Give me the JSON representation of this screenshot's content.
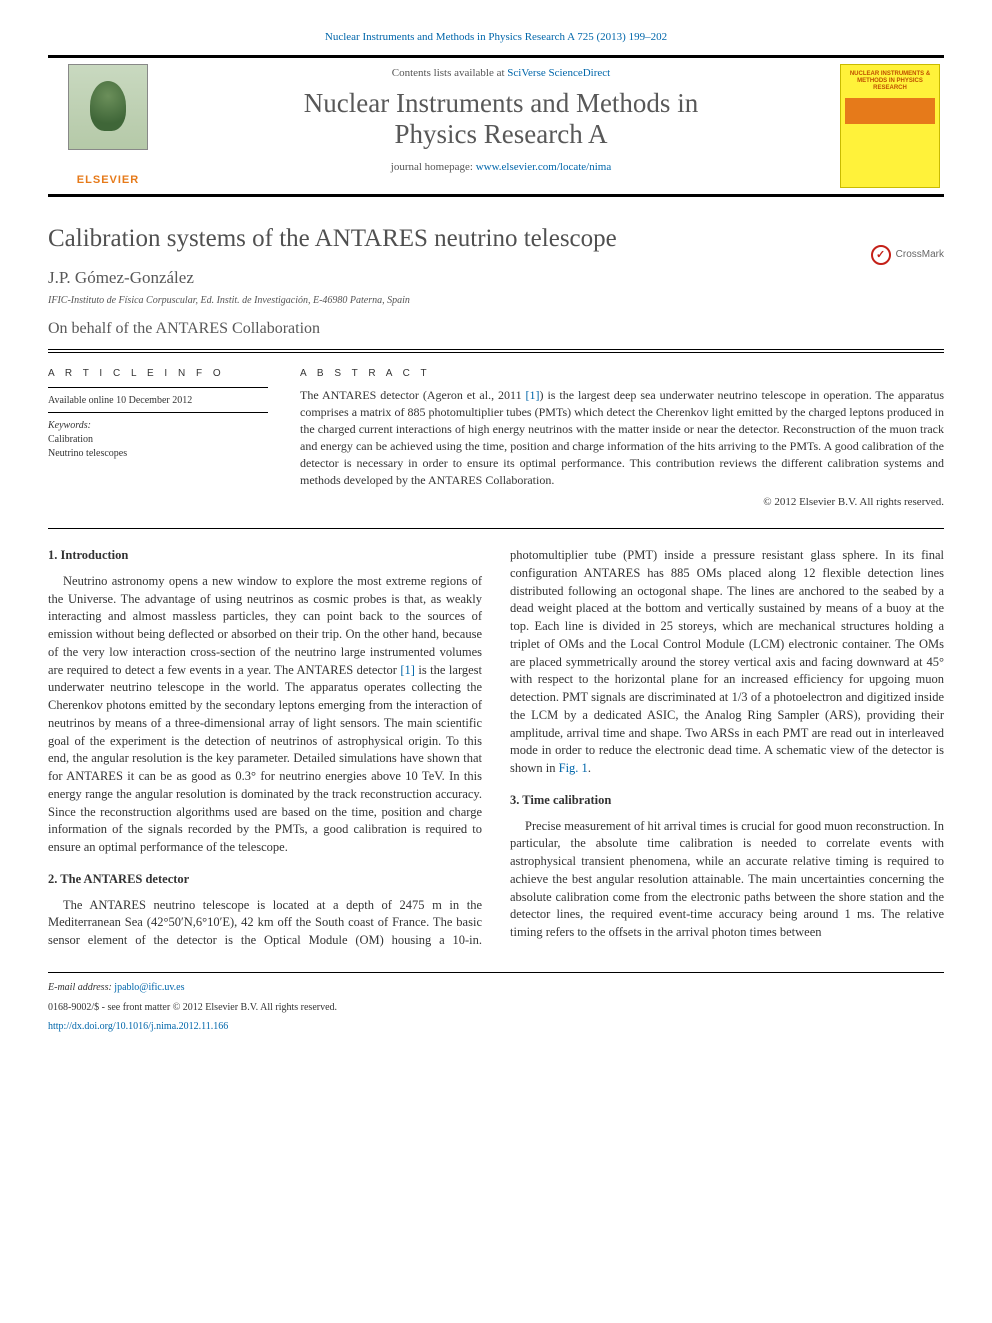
{
  "top_link": {
    "journal": "Nuclear Instruments and Methods in Physics Research A",
    "citation": "725 (2013) 199–202",
    "href_color": "#0066aa"
  },
  "masthead": {
    "contents_prefix": "Contents lists available at ",
    "contents_link": "SciVerse ScienceDirect",
    "journal_title_line1": "Nuclear Instruments and Methods in",
    "journal_title_line2": "Physics Research A",
    "homepage_prefix": "journal homepage: ",
    "homepage_url": "www.elsevier.com/locate/nima",
    "elsevier": "ELSEVIER",
    "cover_text": "NUCLEAR INSTRUMENTS & METHODS IN PHYSICS RESEARCH",
    "cover_bg": "#fff23a",
    "cover_bar": "#e67a1a"
  },
  "crossmark": "CrossMark",
  "article": {
    "title": "Calibration systems of the ANTARES neutrino telescope",
    "author": "J.P. Gómez-González",
    "affiliation": "IFIC-Instituto de Física Corpuscular, Ed. Instit. de Investigación, E-46980 Paterna, Spain",
    "behalf": "On behalf of the ANTARES Collaboration"
  },
  "meta": {
    "info_heading": "A R T I C L E   I N F O",
    "abstract_heading": "A B S T R A C T",
    "available": "Available online 10 December 2012",
    "keywords_label": "Keywords:",
    "keywords": [
      "Calibration",
      "Neutrino telescopes"
    ]
  },
  "abstract": {
    "text_pre": "The ANTARES detector (Ageron et al., 2011 ",
    "ref1": "[1]",
    "text_post": ") is the largest deep sea underwater neutrino telescope in operation. The apparatus comprises a matrix of 885 photomultiplier tubes (PMTs) which detect the Cherenkov light emitted by the charged leptons produced in the charged current interactions of high energy neutrinos with the matter inside or near the detector. Reconstruction of the muon track and energy can be achieved using the time, position and charge information of the hits arriving to the PMTs. A good calibration of the detector is necessary in order to ensure its optimal performance. This contribution reviews the different calibration systems and methods developed by the ANTARES Collaboration.",
    "copyright": "© 2012 Elsevier B.V. All rights reserved."
  },
  "sections": {
    "s1_heading": "1.  Introduction",
    "s1_p1a": "Neutrino astronomy opens a new window to explore the most extreme regions of the Universe. The advantage of using neutrinos as cosmic probes is that, as weakly interacting and almost massless particles, they can point back to the sources of emission without being deflected or absorbed on their trip. On the other hand, because of the very low interaction cross-section of the neutrino large instrumented volumes are required to detect a few events in a year. The ANTARES detector ",
    "s1_ref": "[1]",
    "s1_p1b": " is the largest underwater neutrino telescope in the world. The apparatus operates collecting the Cherenkov photons emitted by the secondary leptons emerging from the interaction of neutrinos by means of a three-dimensional array of light sensors. The main scientific goal of the experiment is the detection of neutrinos of astrophysical origin. To this end, the angular resolution is the key parameter. Detailed simulations have shown that for ANTARES it can be as good as 0.3° for neutrino energies above 10 TeV. In this energy range the angular resolution is dominated by the track reconstruction accuracy. Since the reconstruction algorithms used are based on the time, position and charge information of the signals recorded by the PMTs, a good calibration is required to ensure an optimal performance of the telescope.",
    "s2_heading": "2.  The ANTARES detector",
    "s2_p1": "The ANTARES neutrino telescope is located at a depth of 2475 m in the Mediterranean Sea (42°50′N,6°10′E), 42 km off the South coast of France. The basic sensor element of the detector is the Optical Module (OM) housing a 10-in. photomultiplier tube (PMT) inside a pressure resistant glass sphere. In its final configuration ANTARES has 885 OMs placed along 12 flexible detection lines distributed following an octogonal shape. The lines are anchored to the seabed by a dead weight placed at the bottom and vertically sustained by means of a buoy at the top. Each line is divided in 25 storeys, which are mechanical structures holding a triplet of OMs and the Local Control Module (LCM) electronic container. The OMs are placed symmetrically around the storey vertical axis and facing downward at 45° with respect to the horizontal plane for an increased efficiency for upgoing muon detection. PMT signals are discriminated at 1/3 of a photoelectron and digitized inside the LCM by a dedicated ASIC, the Analog Ring Sampler (ARS), providing their amplitude, arrival time and shape. Two ARSs in each PMT are read out in interleaved mode in order to reduce the electronic dead time. A schematic view of the detector is shown in ",
    "s2_figref": "Fig. 1",
    "s2_p1_end": ".",
    "s3_heading": "3.  Time calibration",
    "s3_p1": "Precise measurement of hit arrival times is crucial for good muon reconstruction. In particular, the absolute time calibration is needed to correlate events with astrophysical transient phenomena, while an accurate relative timing is required to achieve the best angular resolution attainable. The main uncertainties concerning the absolute calibration come from the electronic paths between the shore station and the detector lines, the required event-time accuracy being around 1 ms. The relative timing refers to the offsets in the arrival photon times between"
  },
  "footer": {
    "email_label": "E-mail address:",
    "email": "jpablo@ific.uv.es",
    "issn_line": "0168-9002/$ - see front matter © 2012 Elsevier B.V. All rights reserved.",
    "doi": "http://dx.doi.org/10.1016/j.nima.2012.11.166"
  },
  "colors": {
    "link": "#0066aa",
    "text": "#333333",
    "heading_gray": "#585858",
    "rule": "#000000"
  }
}
